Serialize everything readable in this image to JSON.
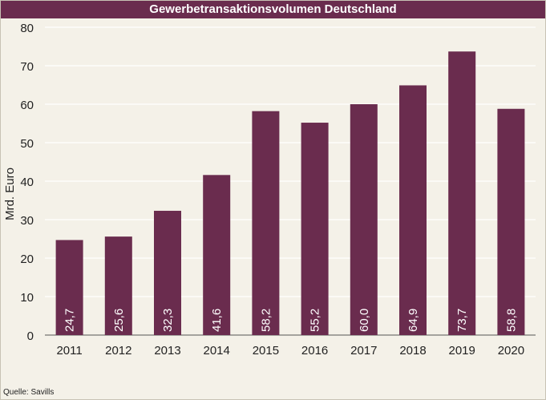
{
  "chart_data": {
    "type": "bar",
    "title": "Gewerbetransaktionsvolumen Deutschland",
    "ylabel": "Mrd. Euro",
    "xlabel": "",
    "categories": [
      "2011",
      "2012",
      "2013",
      "2014",
      "2015",
      "2016",
      "2017",
      "2018",
      "2019",
      "2020"
    ],
    "values": [
      24.7,
      25.6,
      32.3,
      41.6,
      58.2,
      55.2,
      60.0,
      64.9,
      73.7,
      58.8
    ],
    "value_labels": [
      "24,7",
      "25,6",
      "32,3",
      "41,6",
      "58,2",
      "55,2",
      "60,0",
      "64,9",
      "73,7",
      "58,8"
    ],
    "ylim": [
      0,
      80
    ],
    "yticks": [
      0,
      10,
      20,
      30,
      40,
      50,
      60,
      70,
      80
    ],
    "grid": true,
    "legend": "none",
    "bar_color": "#6a2c4e"
  },
  "source": "Quelle: Savills"
}
